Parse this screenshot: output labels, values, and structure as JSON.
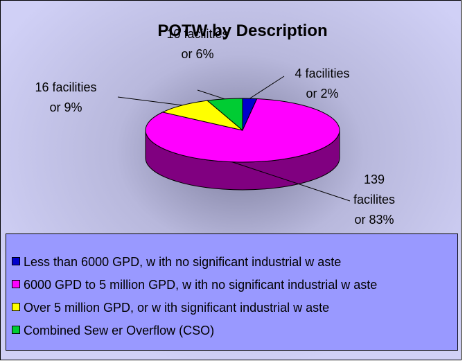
{
  "chart_data": {
    "type": "pie",
    "title": "POTW by Description",
    "categories": [
      "Less than 6000 GPD, w ith no significant industrial w aste",
      "6000 GPD to 5 million GPD, w ith no significant industrial w aste",
      "Over 5 million GPD, or w ith significant industrial w aste",
      "Combined Sew er Overflow  (CSO)"
    ],
    "values": [
      4,
      139,
      16,
      10
    ],
    "value_labels": [
      [
        "4 facilities",
        "or 2%"
      ],
      [
        "139",
        "facilites",
        "or 83%"
      ],
      [
        "16 facilities",
        "or 9%"
      ],
      [
        "10 facilities",
        "or 6%"
      ]
    ],
    "colors": [
      "#0000cc",
      "#ff00ff",
      "#ffff00",
      "#00cc33"
    ],
    "legend": "bottom"
  }
}
